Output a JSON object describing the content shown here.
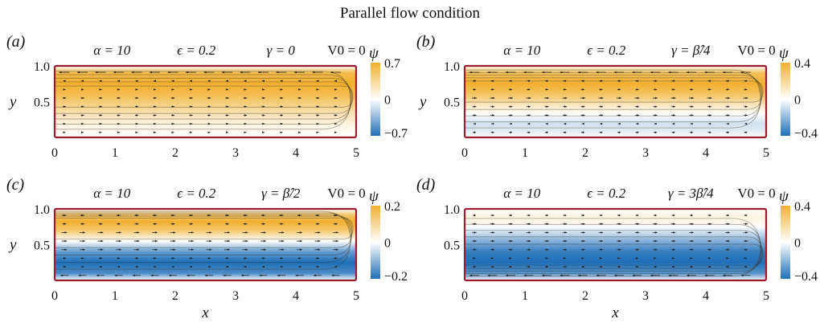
{
  "figure": {
    "title": "Parallel flow condition"
  },
  "colors": {
    "positive": "#f0b030",
    "negative": "#1f6fb8",
    "zero": "#ffffff",
    "wall": "#9b1b30",
    "arrow": "#222222"
  },
  "chart_data": [
    {
      "type": "heatmap",
      "panel_label": "(a)",
      "annotations": [
        "α = 10",
        "ϵ = 0.2",
        "γ = 0",
        "V0 = 0"
      ],
      "xlabel": "",
      "ylabel": "y",
      "x_ticks": [
        "0",
        "1",
        "2",
        "3",
        "4",
        "5"
      ],
      "y_ticks": [
        "1.0",
        "0.5"
      ],
      "xlim": [
        0,
        5
      ],
      "ylim": [
        0,
        1
      ],
      "colorbar": {
        "label": "ψ",
        "ticks": [
          "0.7",
          "0",
          "−0.7"
        ],
        "range": [
          -0.7,
          0.7
        ]
      },
      "core_sign": 1,
      "core_y": 0.6,
      "field": {
        "y": [
          0.0,
          0.15,
          0.3,
          0.45,
          0.6,
          0.75,
          0.9,
          1.0
        ],
        "psi": [
          0.0,
          0.08,
          0.22,
          0.4,
          0.6,
          0.7,
          0.62,
          0.0
        ]
      }
    },
    {
      "type": "heatmap",
      "panel_label": "(b)",
      "annotations": [
        "α = 10",
        "ϵ = 0.2",
        "γ = β̂/4",
        "V0 = 0"
      ],
      "xlabel": "",
      "ylabel": "y",
      "x_ticks": [
        "0",
        "1",
        "2",
        "3",
        "4",
        "5"
      ],
      "y_ticks": [
        "1.0",
        "0.5"
      ],
      "xlim": [
        0,
        5
      ],
      "ylim": [
        0,
        1
      ],
      "colorbar": {
        "label": "ψ",
        "ticks": [
          "0.4",
          "0",
          "−0.4"
        ],
        "range": [
          -0.4,
          0.4
        ]
      },
      "core_sign": 1,
      "core_y": 0.7,
      "field": {
        "y": [
          0.0,
          0.1,
          0.2,
          0.3,
          0.45,
          0.6,
          0.75,
          0.9,
          1.0
        ],
        "psi": [
          0.0,
          -0.06,
          -0.08,
          -0.02,
          0.12,
          0.3,
          0.4,
          0.32,
          0.0
        ]
      }
    },
    {
      "type": "heatmap",
      "panel_label": "(c)",
      "annotations": [
        "α = 10",
        "ϵ = 0.2",
        "γ = β̂/2",
        "V0 = 0"
      ],
      "xlabel": "",
      "ylabel": "y",
      "x_ticks": [
        "0",
        "1",
        "2",
        "3",
        "4",
        "5"
      ],
      "y_ticks": [
        "1.0",
        "0.5"
      ],
      "xlim": [
        0,
        5
      ],
      "ylim": [
        0,
        1
      ],
      "colorbar": {
        "label": "ψ",
        "ticks": [
          "0.2",
          "0",
          "−0.2"
        ],
        "range": [
          -0.2,
          0.2
        ]
      },
      "core_sign": 1,
      "core_y": 0.82,
      "field": {
        "y": [
          0.0,
          0.1,
          0.25,
          0.4,
          0.55,
          0.7,
          0.82,
          0.92,
          1.0
        ],
        "psi": [
          0.0,
          -0.16,
          -0.2,
          -0.14,
          0.0,
          0.14,
          0.2,
          0.14,
          0.0
        ]
      }
    },
    {
      "type": "heatmap",
      "panel_label": "(d)",
      "annotations": [
        "α = 10",
        "ϵ = 0.2",
        "γ = 3β̂/4",
        "V0 = 0"
      ],
      "xlabel": "x",
      "ylabel": "",
      "x_ticks": [
        "0",
        "1",
        "2",
        "3",
        "4",
        "5"
      ],
      "y_ticks": [
        "1.0",
        "0.5"
      ],
      "xlim": [
        0,
        5
      ],
      "ylim": [
        0,
        1
      ],
      "colorbar": {
        "label": "ψ",
        "ticks": [
          "0.4",
          "0",
          "−0.4"
        ],
        "range": [
          -0.4,
          0.4
        ]
      },
      "core_sign": -1,
      "core_y": 0.3,
      "field": {
        "y": [
          0.0,
          0.1,
          0.25,
          0.4,
          0.55,
          0.7,
          0.8,
          0.9,
          1.0
        ],
        "psi": [
          0.0,
          -0.3,
          -0.4,
          -0.36,
          -0.22,
          -0.06,
          0.04,
          0.06,
          0.0
        ]
      }
    }
  ],
  "shared_xlabel": "x"
}
